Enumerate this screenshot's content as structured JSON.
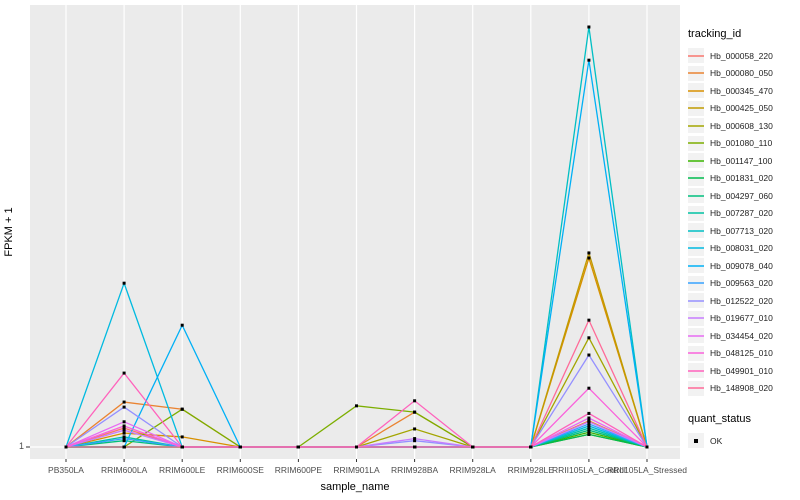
{
  "figure": {
    "panel_bg": "#EBEBEB",
    "grid_color": "#FFFFFF",
    "point_color": "#000000",
    "tick_color": "#333333"
  },
  "axes": {
    "x_title": "sample_name",
    "y_title": "FPKM + 1",
    "y_tick_labels": [
      "1"
    ]
  },
  "legend": {
    "tracking_title": "tracking_id",
    "quant_title": "quant_status",
    "quant_items": [
      {
        "label": "OK",
        "shape": "black-square"
      }
    ]
  },
  "chart_data": {
    "type": "line",
    "title": "",
    "xlabel": "sample_name",
    "ylabel": "FPKM + 1",
    "legend_position": "right",
    "grid": "on",
    "baseline_value": 1,
    "y_tick_labels": [
      "1"
    ],
    "y_note": "Only the value 1 is labeled on the y-axis; y_frac gives each point's height above the FPKM+1=1 baseline as a fraction of the tallest peak (Hb_007713_020 at RRII105LA_Control).",
    "categories": [
      "PB350LA",
      "RRIM600LA",
      "RRIM600LE",
      "RRIM600SE",
      "RRIM600PE",
      "RRIM901LA",
      "RRIM928BA",
      "RRIM928LA",
      "RRIM928LE",
      "RRII105LA_Control",
      "RRII105LA_Stressed"
    ],
    "quant_status": "OK",
    "series": [
      {
        "name": "Hb_000058_220",
        "color": "#F8766D",
        "y_frac": [
          0,
          0.045,
          0,
          0,
          0,
          0,
          0,
          0,
          0,
          0.062,
          0
        ]
      },
      {
        "name": "Hb_000080_050",
        "color": "#EA8331",
        "y_frac": [
          0,
          0.107,
          0.09,
          0,
          0,
          0,
          0.083,
          0,
          0,
          0.062,
          0
        ]
      },
      {
        "name": "Hb_000345_470",
        "color": "#D89000",
        "y_frac": [
          0,
          0.033,
          0.024,
          0,
          0,
          0,
          0,
          0,
          0,
          0.45,
          0
        ]
      },
      {
        "name": "Hb_000425_050",
        "color": "#C09B00",
        "y_frac": [
          0,
          0,
          0,
          0,
          0,
          0,
          0,
          0,
          0,
          0.462,
          0
        ]
      },
      {
        "name": "Hb_000608_130",
        "color": "#A3A500",
        "y_frac": [
          0,
          0,
          0,
          0,
          0,
          0,
          0.043,
          0,
          0,
          0.26,
          0
        ]
      },
      {
        "name": "Hb_001080_110",
        "color": "#7CAE00",
        "y_frac": [
          0,
          0,
          0.09,
          0,
          0,
          0.098,
          0.083,
          0,
          0,
          0.03,
          0
        ]
      },
      {
        "name": "Hb_001147_100",
        "color": "#39B600",
        "y_frac": [
          0,
          0,
          0,
          0,
          0,
          0,
          0,
          0,
          0,
          0.035,
          0
        ]
      },
      {
        "name": "Hb_001831_020",
        "color": "#00BB4E",
        "y_frac": [
          0,
          0,
          0,
          0,
          0,
          0,
          0,
          0,
          0,
          0.03,
          0
        ]
      },
      {
        "name": "Hb_004297_060",
        "color": "#00BF7D",
        "y_frac": [
          0,
          0.015,
          0,
          0,
          0,
          0,
          0,
          0,
          0,
          0.04,
          0
        ]
      },
      {
        "name": "Hb_007287_020",
        "color": "#00C1A3",
        "y_frac": [
          0,
          0.024,
          0,
          0,
          0,
          0,
          0,
          0,
          0,
          0.045,
          0
        ]
      },
      {
        "name": "Hb_007713_020",
        "color": "#00BFC4",
        "y_frac": [
          0,
          0,
          0,
          0,
          0,
          0,
          0,
          0,
          0,
          1.0,
          0
        ]
      },
      {
        "name": "Hb_008031_020",
        "color": "#00BAE0",
        "y_frac": [
          0,
          0.39,
          0,
          0,
          0,
          0,
          0,
          0,
          0,
          0.05,
          0
        ]
      },
      {
        "name": "Hb_009078_040",
        "color": "#00B0F6",
        "y_frac": [
          0,
          0,
          0.29,
          0,
          0,
          0,
          0,
          0,
          0,
          0.921,
          0
        ]
      },
      {
        "name": "Hb_009563_020",
        "color": "#35A2FF",
        "y_frac": [
          0,
          0.02,
          0,
          0,
          0,
          0,
          0,
          0,
          0,
          0.055,
          0
        ]
      },
      {
        "name": "Hb_012522_020",
        "color": "#9590FF",
        "y_frac": [
          0,
          0.095,
          0,
          0,
          0,
          0,
          0.015,
          0,
          0,
          0.219,
          0
        ]
      },
      {
        "name": "Hb_019677_010",
        "color": "#C77CFF",
        "y_frac": [
          0,
          0.04,
          0,
          0,
          0,
          0,
          0.02,
          0,
          0,
          0.06,
          0
        ]
      },
      {
        "name": "Hb_034454_020",
        "color": "#E76BF3",
        "y_frac": [
          0,
          0.06,
          0,
          0,
          0,
          0,
          0,
          0,
          0,
          0.069,
          0
        ]
      },
      {
        "name": "Hb_048125_010",
        "color": "#FA62DB",
        "y_frac": [
          0,
          0.05,
          0,
          0,
          0,
          0,
          0,
          0,
          0,
          0.14,
          0
        ]
      },
      {
        "name": "Hb_049901_010",
        "color": "#FF62BC",
        "y_frac": [
          0,
          0.176,
          0,
          0,
          0,
          0,
          0.11,
          0,
          0,
          0.08,
          0
        ]
      },
      {
        "name": "Hb_148908_020",
        "color": "#FF6A98",
        "y_frac": [
          0,
          0,
          0,
          0,
          0,
          0,
          0,
          0,
          0,
          0.302,
          0
        ]
      }
    ]
  }
}
